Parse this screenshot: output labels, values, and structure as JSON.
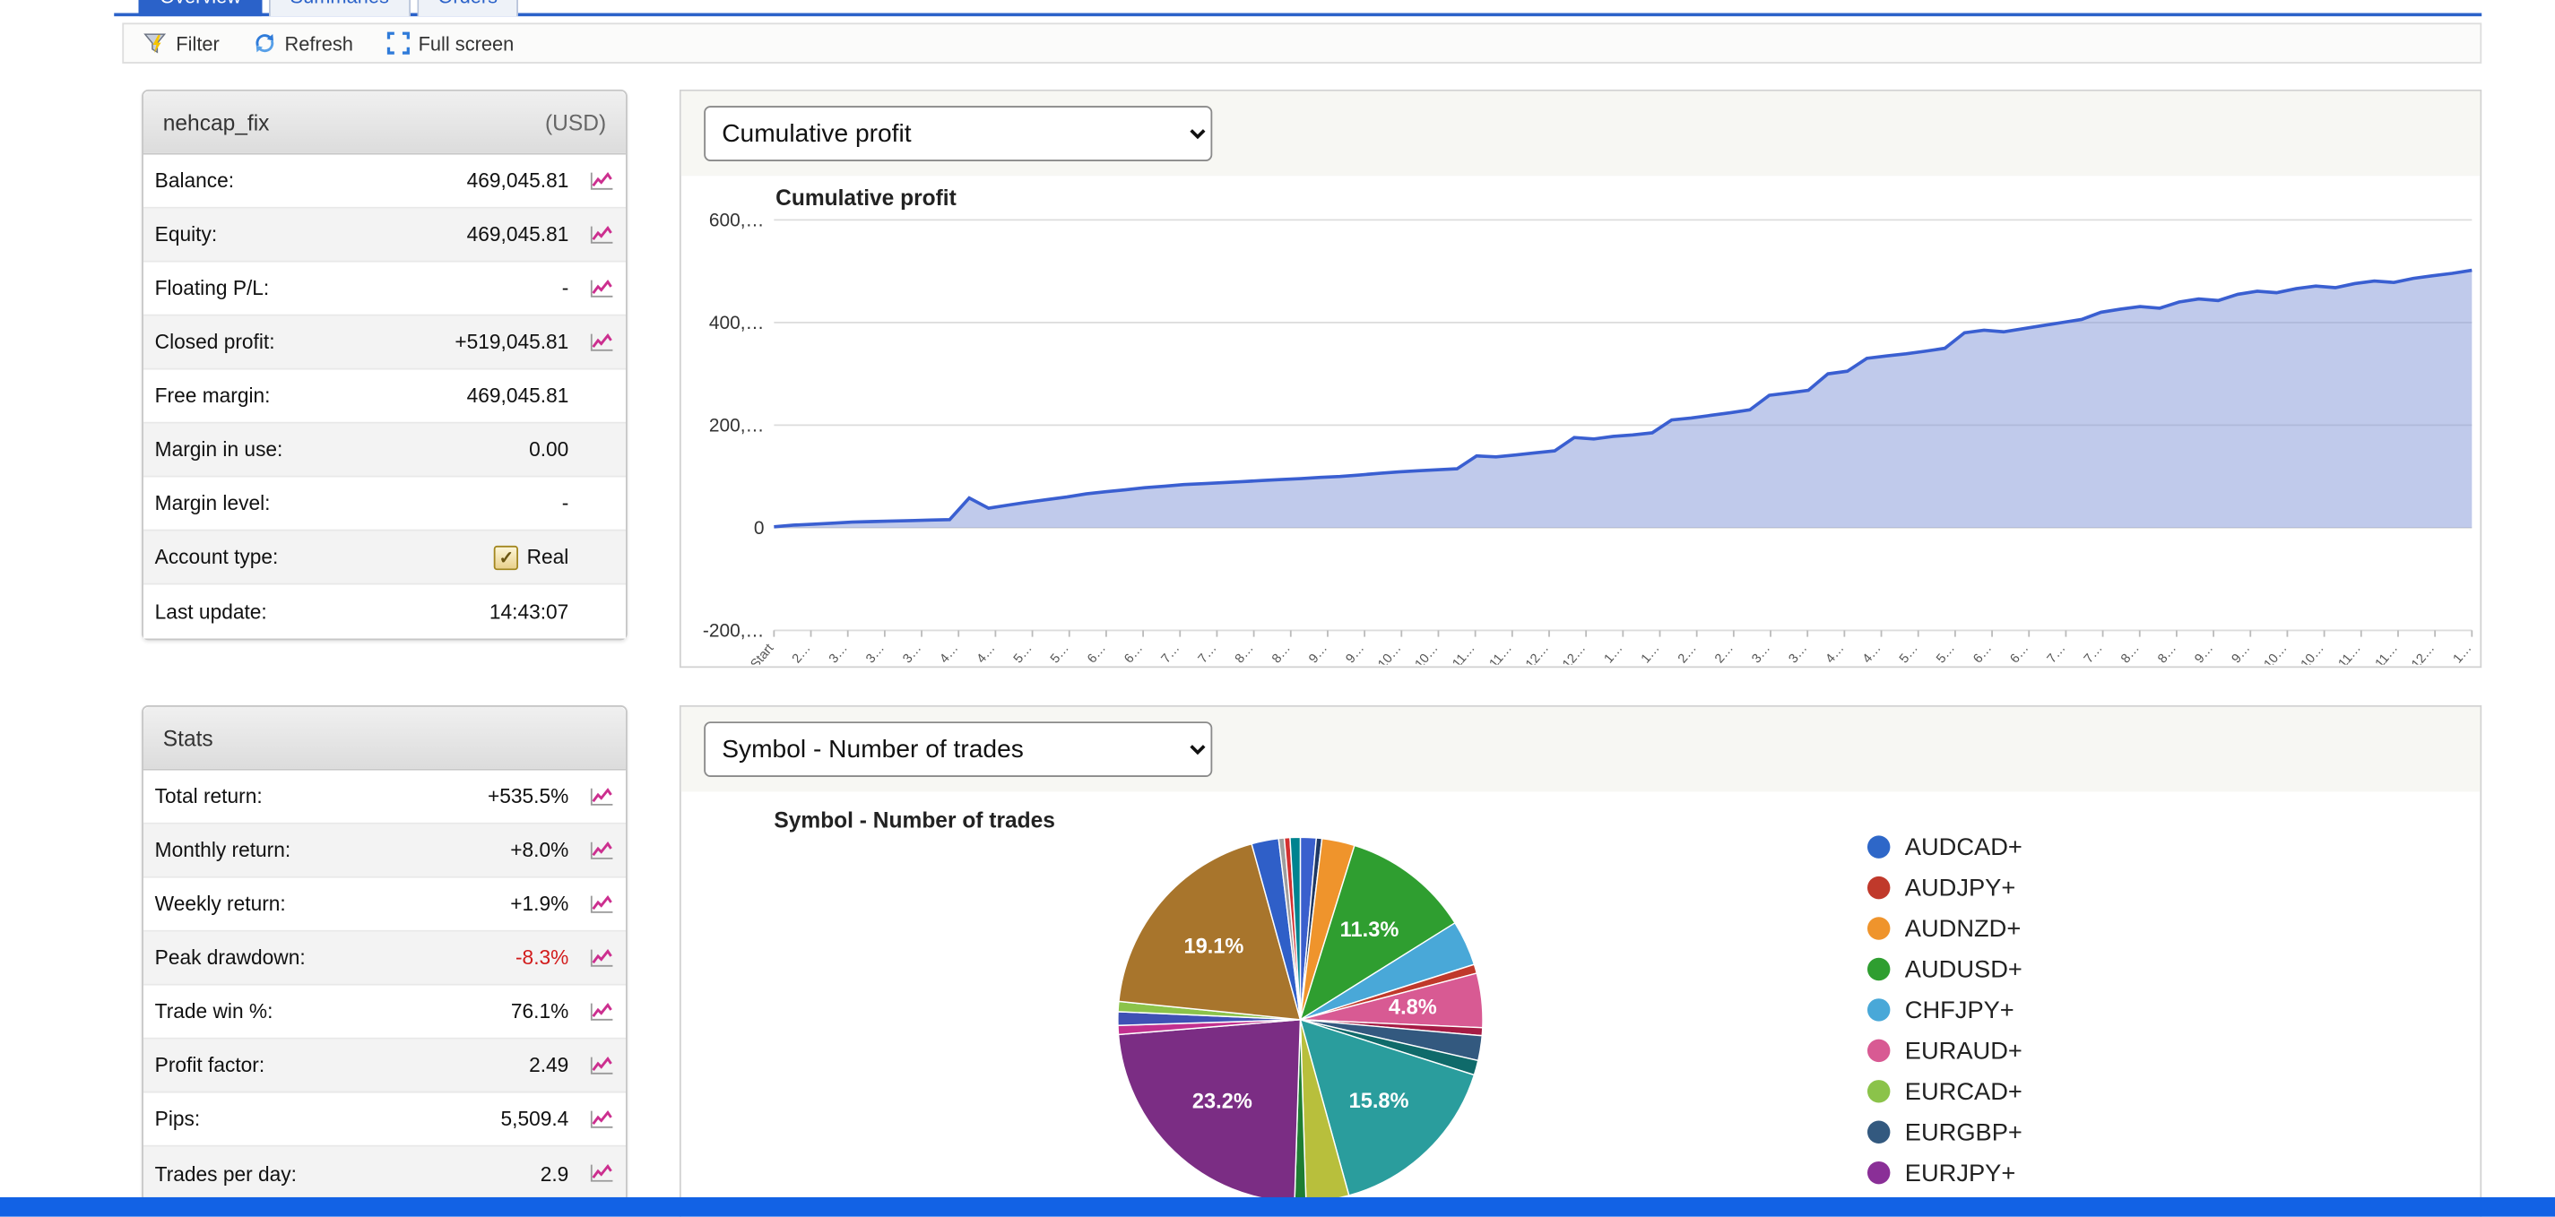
{
  "tabs": [
    {
      "label": "Overview",
      "active": true
    },
    {
      "label": "Summaries",
      "active": false
    },
    {
      "label": "Orders",
      "active": false
    }
  ],
  "toolbar": {
    "filter": "Filter",
    "refresh": "Refresh",
    "fullscreen": "Full screen"
  },
  "account": {
    "title": "nehcap_fix",
    "currency": "(USD)",
    "rows": [
      {
        "label": "Balance:",
        "value": "469,045.81",
        "icon": true
      },
      {
        "label": "Equity:",
        "value": "469,045.81",
        "icon": true
      },
      {
        "label": "Floating P/L:",
        "value": "-",
        "icon": true
      },
      {
        "label": "Closed profit:",
        "value": "+519,045.81",
        "icon": true
      },
      {
        "label": "Free margin:",
        "value": "469,045.81",
        "icon": false
      },
      {
        "label": "Margin in use:",
        "value": "0.00",
        "icon": false
      },
      {
        "label": "Margin level:",
        "value": "-",
        "icon": false
      },
      {
        "label": "Account type:",
        "value": "Real",
        "icon": false,
        "checkbox": true
      },
      {
        "label": "Last update:",
        "value": "14:43:07",
        "icon": false
      }
    ]
  },
  "stats": {
    "title": "Stats",
    "rows": [
      {
        "label": "Total return:",
        "value": "+535.5%",
        "icon": true
      },
      {
        "label": "Monthly return:",
        "value": "+8.0%",
        "icon": true
      },
      {
        "label": "Weekly return:",
        "value": "+1.9%",
        "icon": true
      },
      {
        "label": "Peak drawdown:",
        "value": "-8.3%",
        "icon": true,
        "negative": true
      },
      {
        "label": "Trade win %:",
        "value": "76.1%",
        "icon": true
      },
      {
        "label": "Profit factor:",
        "value": "2.49",
        "icon": true
      },
      {
        "label": "Pips:",
        "value": "5,509.4",
        "icon": true
      },
      {
        "label": "Trades per day:",
        "value": "2.9",
        "icon": true
      }
    ]
  },
  "charts": {
    "profit": {
      "selector": "Cumulative profit",
      "title": "Cumulative profit"
    },
    "symbols": {
      "selector": "Symbol - Number of trades",
      "title": "Symbol - Number of trades"
    }
  },
  "chart_data": [
    {
      "type": "area",
      "title": "Cumulative profit",
      "ylim": [
        -200000,
        600000
      ],
      "baseline": 0,
      "grid": true,
      "line_color": "#3a5fd1",
      "fill_color": "rgba(130,150,215,0.5)",
      "y_ticks": [
        {
          "value": 600000,
          "label": "600,…"
        },
        {
          "value": 400000,
          "label": "400,…"
        },
        {
          "value": 200000,
          "label": "200,…"
        },
        {
          "value": 0,
          "label": "0"
        },
        {
          "value": -200000,
          "label": "-200,…"
        }
      ],
      "x_labels": [
        "Start",
        "2…",
        "3…",
        "3…",
        "3…",
        "4…",
        "4…",
        "5…",
        "5…",
        "6…",
        "6…",
        "7…",
        "7…",
        "8…",
        "8…",
        "9…",
        "9…",
        "10…",
        "10…",
        "11…",
        "11…",
        "12…",
        "12…",
        "1…",
        "1…",
        "2…",
        "2…",
        "3…",
        "3…",
        "4…",
        "4…",
        "5…",
        "5…",
        "6…",
        "6…",
        "7…",
        "7…",
        "8…",
        "8…",
        "9…",
        "9…",
        "10…",
        "10…",
        "11…",
        "11…",
        "12…",
        "1…"
      ],
      "values": [
        2000,
        5000,
        7000,
        9000,
        11000,
        12000,
        13000,
        14000,
        15000,
        16000,
        58000,
        38000,
        44000,
        50000,
        55000,
        60000,
        66000,
        70000,
        74000,
        78000,
        81000,
        84000,
        86000,
        88000,
        90000,
        92000,
        94000,
        96000,
        98000,
        100000,
        103000,
        106000,
        109000,
        111000,
        113000,
        115000,
        140000,
        138000,
        142000,
        146000,
        150000,
        176000,
        173000,
        178000,
        181000,
        185000,
        210000,
        214000,
        219000,
        224000,
        230000,
        258000,
        263000,
        268000,
        300000,
        305000,
        330000,
        335000,
        339000,
        344000,
        350000,
        380000,
        385000,
        382000,
        388000,
        394000,
        400000,
        406000,
        420000,
        426000,
        431000,
        428000,
        440000,
        446000,
        443000,
        455000,
        461000,
        458000,
        466000,
        471000,
        468000,
        476000,
        481000,
        478000,
        486000,
        491000,
        496000,
        502000
      ]
    },
    {
      "type": "pie",
      "title": "Symbol - Number of trades",
      "slices": [
        {
          "color": "#3a5fcd",
          "pct": 1.4
        },
        {
          "color": "#1f3864",
          "pct": 0.5
        },
        {
          "color": "#ef942c",
          "pct": 2.9
        },
        {
          "color": "#2f9e30",
          "pct": 11.3,
          "label": "11.3%"
        },
        {
          "color": "#49a8d8",
          "pct": 4.0
        },
        {
          "color": "#c0392b",
          "pct": 0.8
        },
        {
          "color": "#d85a93",
          "pct": 4.8,
          "label": "4.8%"
        },
        {
          "color": "#a61c45",
          "pct": 0.7
        },
        {
          "color": "#33597f",
          "pct": 2.2
        },
        {
          "color": "#0f6a6a",
          "pct": 1.3
        },
        {
          "color": "#2a9d9d",
          "pct": 15.8,
          "label": "15.8%"
        },
        {
          "color": "#b8bf3c",
          "pct": 3.8
        },
        {
          "color": "#1e7d33",
          "pct": 1.0
        },
        {
          "color": "#7b2d84",
          "pct": 23.2,
          "label": "23.2%"
        },
        {
          "color": "#c2308f",
          "pct": 0.8
        },
        {
          "color": "#3f51b5",
          "pct": 1.2
        },
        {
          "color": "#8bc34a",
          "pct": 0.9
        },
        {
          "color": "#a8752c",
          "pct": 19.1,
          "label": "19.1%"
        },
        {
          "color": "#2f5fc8",
          "pct": 2.4
        },
        {
          "color": "#9e9e9e",
          "pct": 0.5
        },
        {
          "color": "#d32f2f",
          "pct": 0.5
        },
        {
          "color": "#00838f",
          "pct": 0.9
        }
      ],
      "legend": [
        {
          "label": "AUDCAD+",
          "color": "#2e67c8"
        },
        {
          "label": "AUDJPY+",
          "color": "#c0392b"
        },
        {
          "label": "AUDNZD+",
          "color": "#ef942c"
        },
        {
          "label": "AUDUSD+",
          "color": "#2f9e30"
        },
        {
          "label": "CHFJPY+",
          "color": "#49a8d8"
        },
        {
          "label": "EURAUD+",
          "color": "#d85a93"
        },
        {
          "label": "EURCAD+",
          "color": "#8bc34a"
        },
        {
          "label": "EURGBP+",
          "color": "#33597f"
        },
        {
          "label": "EURJPY+",
          "color": "#8a2f97"
        }
      ]
    }
  ],
  "colors": {
    "accent_blue": "#2b62c9",
    "bottom_bar": "#1262e5",
    "negative": "#d21c1c"
  }
}
